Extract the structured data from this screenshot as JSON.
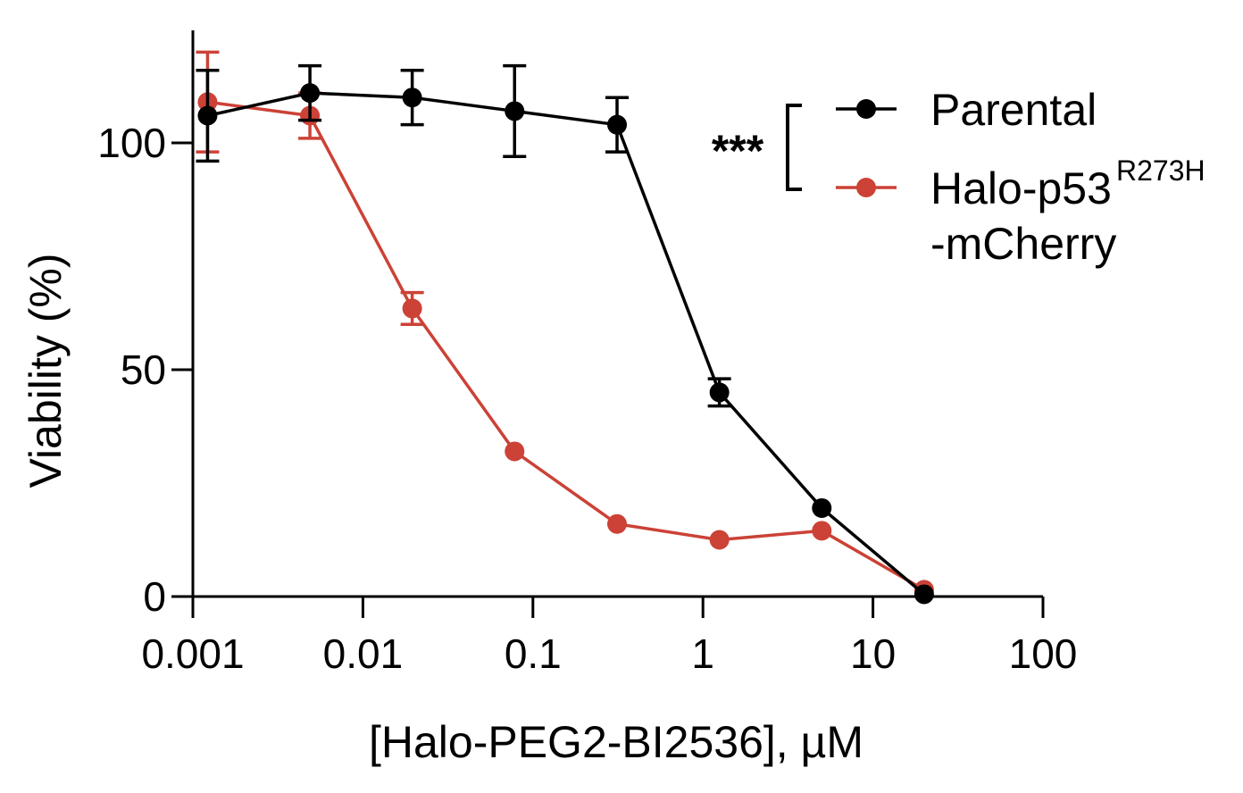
{
  "chart_data": {
    "type": "line",
    "xlabel": "[Halo-PEG2-BI2536], µM",
    "ylabel": "Viability (%)",
    "xscale": "log",
    "xlim": [
      0.001,
      100
    ],
    "ylim": [
      0,
      120
    ],
    "x_ticks": [
      0.001,
      0.01,
      0.1,
      1,
      10,
      100
    ],
    "x_tick_labels": [
      "0.001",
      "0.01",
      "0.1",
      "1",
      "10",
      "100"
    ],
    "y_ticks": [
      0,
      50,
      100
    ],
    "y_tick_labels": [
      "0",
      "50",
      "100"
    ],
    "grid": false,
    "legend_position": "top-right",
    "significance_label": "***",
    "series": [
      {
        "name": "Parental",
        "color": "#000000",
        "x": [
          0.00122,
          0.00488,
          0.0195,
          0.078,
          0.3125,
          1.25,
          5.0,
          20.0
        ],
        "y": [
          106,
          111,
          110,
          107,
          104,
          45,
          19.5,
          0.5
        ],
        "error": [
          10,
          6,
          6,
          10,
          6,
          3,
          0,
          0
        ]
      },
      {
        "name": "Halo-p53",
        "name_superscript": "R273H",
        "name_line2": "-mCherry",
        "color": "#cc4236",
        "x": [
          0.00122,
          0.00488,
          0.0195,
          0.078,
          0.3125,
          1.25,
          5.0,
          20.0
        ],
        "y": [
          109,
          106,
          63.5,
          32,
          16,
          12.5,
          14.5,
          1.5
        ],
        "error": [
          11,
          5,
          3.5,
          0,
          0,
          0,
          0,
          0
        ]
      }
    ]
  }
}
